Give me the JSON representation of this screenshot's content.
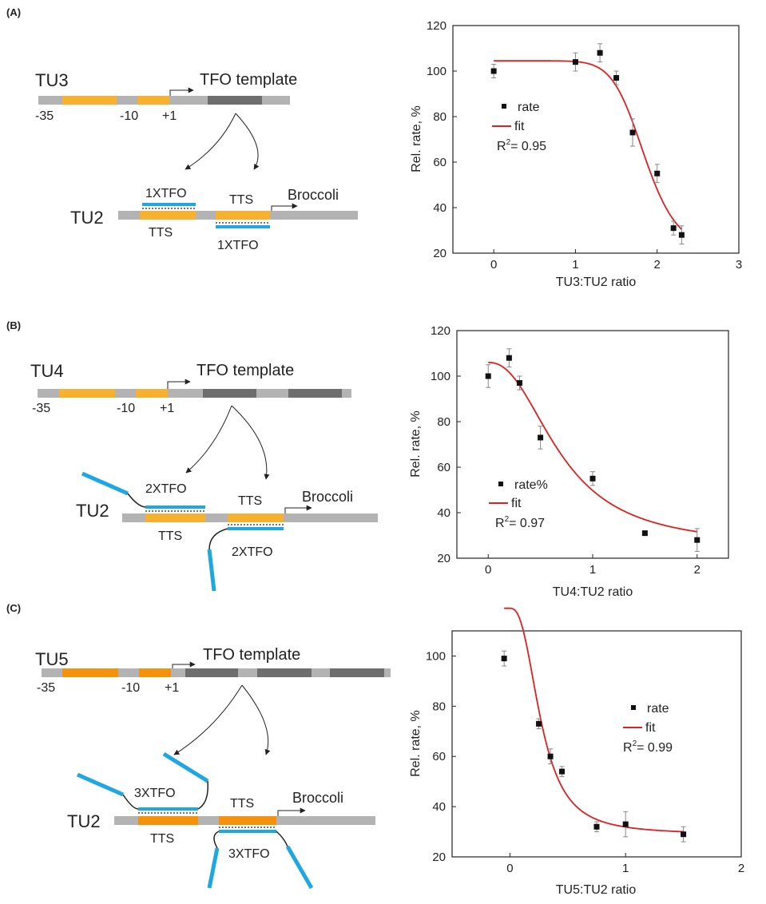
{
  "panels": [
    {
      "label": "(A)",
      "diagram": {
        "top_unit": "TU3",
        "template_label": "TFO template",
        "positions": [
          "-35",
          "-10",
          "+1"
        ],
        "bottom_unit": "TU2",
        "tfo_top": "1XTFO",
        "tfo_bottom": "1XTFO",
        "tts_top": "TTS",
        "tts_bottom": "TTS",
        "reporter": "Broccoli"
      },
      "chart": {
        "legend": [
          "rate",
          "fit"
        ],
        "r2_prefix": "R",
        "r2_sup": "2",
        "r2_value": "= 0.95"
      }
    },
    {
      "label": "(B)",
      "diagram": {
        "top_unit": "TU4",
        "template_label": "TFO template",
        "positions": [
          "-35",
          "-10",
          "+1"
        ],
        "bottom_unit": "TU2",
        "tfo_top": "2XTFO",
        "tfo_bottom": "2XTFO",
        "tts_top": "TTS",
        "tts_bottom": "TTS",
        "reporter": "Broccoli"
      },
      "chart": {
        "legend": [
          "rate%",
          "fit"
        ],
        "r2_prefix": "R",
        "r2_sup": "2",
        "r2_value": "= 0.97"
      }
    },
    {
      "label": "(C)",
      "diagram": {
        "top_unit": "TU5",
        "template_label": "TFO template",
        "positions": [
          "-35",
          "-10",
          "+1"
        ],
        "bottom_unit": "TU2",
        "tfo_top": "3XTFO",
        "tfo_bottom": "3XTFO",
        "tts_top": "TTS",
        "tts_bottom": "TTS",
        "reporter": "Broccoli"
      },
      "chart": {
        "legend": [
          "rate",
          "fit"
        ],
        "r2_prefix": "R",
        "r2_sup": "2",
        "r2_value": "= 0.99"
      }
    }
  ],
  "colors": {
    "promoter": "#f7b030",
    "promoter_dark": "#f4920e",
    "dna": "#b3b3b3",
    "template": "#6e6e6e",
    "tfo": "#1ea7e1",
    "fit": "#e02020",
    "point": "#111111"
  },
  "chart_data": [
    {
      "type": "scatter",
      "title": "",
      "xlabel": "TU3:TU2 ratio",
      "ylabel": "Rel. rate, %",
      "xlim": [
        -0.5,
        3
      ],
      "ylim": [
        20,
        120
      ],
      "xticks": [
        0,
        1,
        2,
        3
      ],
      "yticks": [
        20,
        40,
        60,
        80,
        100,
        120
      ],
      "series": [
        {
          "name": "rate",
          "x": [
            0,
            1.0,
            1.3,
            1.5,
            1.7,
            2.0,
            2.2,
            2.3
          ],
          "y": [
            100,
            104,
            108,
            97,
            73,
            55,
            31,
            28
          ],
          "err": [
            3,
            4,
            4,
            3,
            6,
            4,
            3,
            4
          ]
        },
        {
          "name": "fit",
          "fit": {
            "top": 104.5,
            "bottom": 20,
            "x0": 1.85,
            "p": 9
          }
        }
      ]
    },
    {
      "type": "scatter",
      "title": "",
      "xlabel": "TU4:TU2 ratio",
      "ylabel": "Rel. rate, %",
      "xlim": [
        -0.3,
        2.3
      ],
      "ylim": [
        20,
        120
      ],
      "xticks": [
        0,
        1,
        2
      ],
      "yticks": [
        20,
        40,
        60,
        80,
        100,
        120
      ],
      "series": [
        {
          "name": "rate%",
          "x": [
            0,
            0.2,
            0.3,
            0.5,
            1.0,
            1.5,
            2.0
          ],
          "y": [
            100,
            108,
            97,
            73,
            55,
            31,
            28
          ],
          "err": [
            5,
            4,
            3,
            5,
            3,
            1,
            5
          ]
        },
        {
          "name": "fit",
          "fit": {
            "top": 106,
            "bottom": 25,
            "x0": 0.7,
            "p": 2.3
          }
        }
      ]
    },
    {
      "type": "scatter",
      "title": "",
      "xlabel": "TU5:TU2 ratio",
      "ylabel": "Rel. rate, %",
      "xlim": [
        -0.5,
        2
      ],
      "ylim": [
        20,
        110
      ],
      "xticks": [
        0,
        1,
        2
      ],
      "yticks": [
        20,
        40,
        60,
        80,
        100
      ],
      "series": [
        {
          "name": "rate",
          "x": [
            -0.05,
            0.25,
            0.35,
            0.45,
            0.75,
            1.0,
            1.5
          ],
          "y": [
            99,
            73,
            60,
            54,
            32,
            33,
            29
          ],
          "err": [
            3,
            2,
            3,
            2,
            2,
            5,
            3
          ]
        },
        {
          "name": "fit",
          "fit": {
            "top": 119,
            "bottom": 29,
            "x0": 0.27,
            "p": 2.6,
            "start": -0.05
          }
        }
      ]
    }
  ]
}
